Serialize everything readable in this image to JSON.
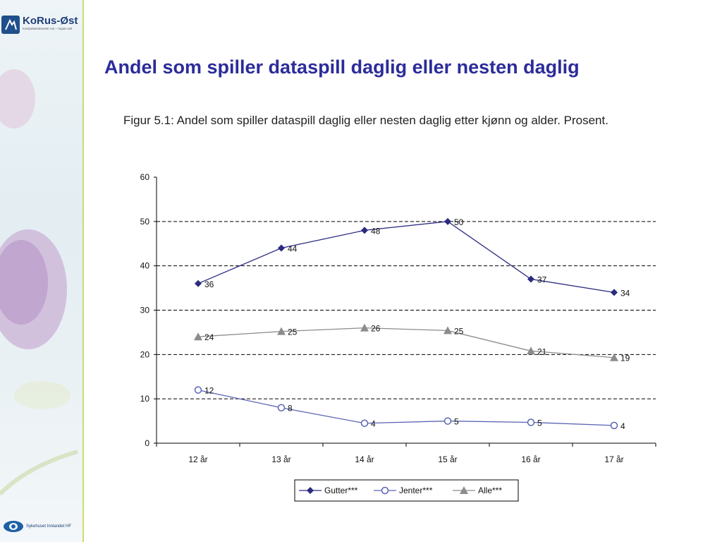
{
  "slide": {
    "title": "Andel som spiller dataspill daglig eller nesten daglig",
    "caption": "Figur 5.1: Andel som spiller dataspill daglig eller nesten daglig etter kjønn og alder. Prosent."
  },
  "logos": {
    "top_brand": "KoRus-Øst",
    "top_tagline": "Kompetansesenter rus – region øst",
    "bottom_text": "Sykehuset Innlandet HF"
  },
  "colors": {
    "title": "#2c2c9a",
    "gutter": "#2b2b80",
    "jenter": "#5a64b4",
    "alle": "#8c8c8c",
    "sidebar_rule": "#c9de6a"
  },
  "chart_data": {
    "type": "line",
    "title": "",
    "xlabel": "",
    "ylabel": "",
    "categories": [
      "12 år",
      "13 år",
      "14 år",
      "15 år",
      "16 år",
      "17 år"
    ],
    "ylim": [
      0,
      60
    ],
    "yticks": [
      0,
      10,
      20,
      30,
      40,
      50,
      60
    ],
    "grid": "horizontal dashed",
    "legend_position": "bottom",
    "series": [
      {
        "name": "Gutter***",
        "marker": "diamond",
        "values": [
          36,
          44,
          48,
          50,
          37,
          34
        ],
        "labels": [
          "36",
          "44",
          "48",
          "50",
          "37",
          "34"
        ]
      },
      {
        "name": "Jenter***",
        "marker": "circle-open",
        "values": [
          12,
          8,
          4.5,
          5,
          4.7,
          4
        ],
        "labels": [
          "12",
          "8",
          "4",
          "5",
          "5",
          "4"
        ]
      },
      {
        "name": "Alle***",
        "marker": "triangle",
        "values": [
          24,
          25.2,
          26,
          25.4,
          20.8,
          19.3
        ],
        "labels": [
          "24",
          "25",
          "26",
          "25",
          "21",
          "19"
        ]
      }
    ]
  }
}
